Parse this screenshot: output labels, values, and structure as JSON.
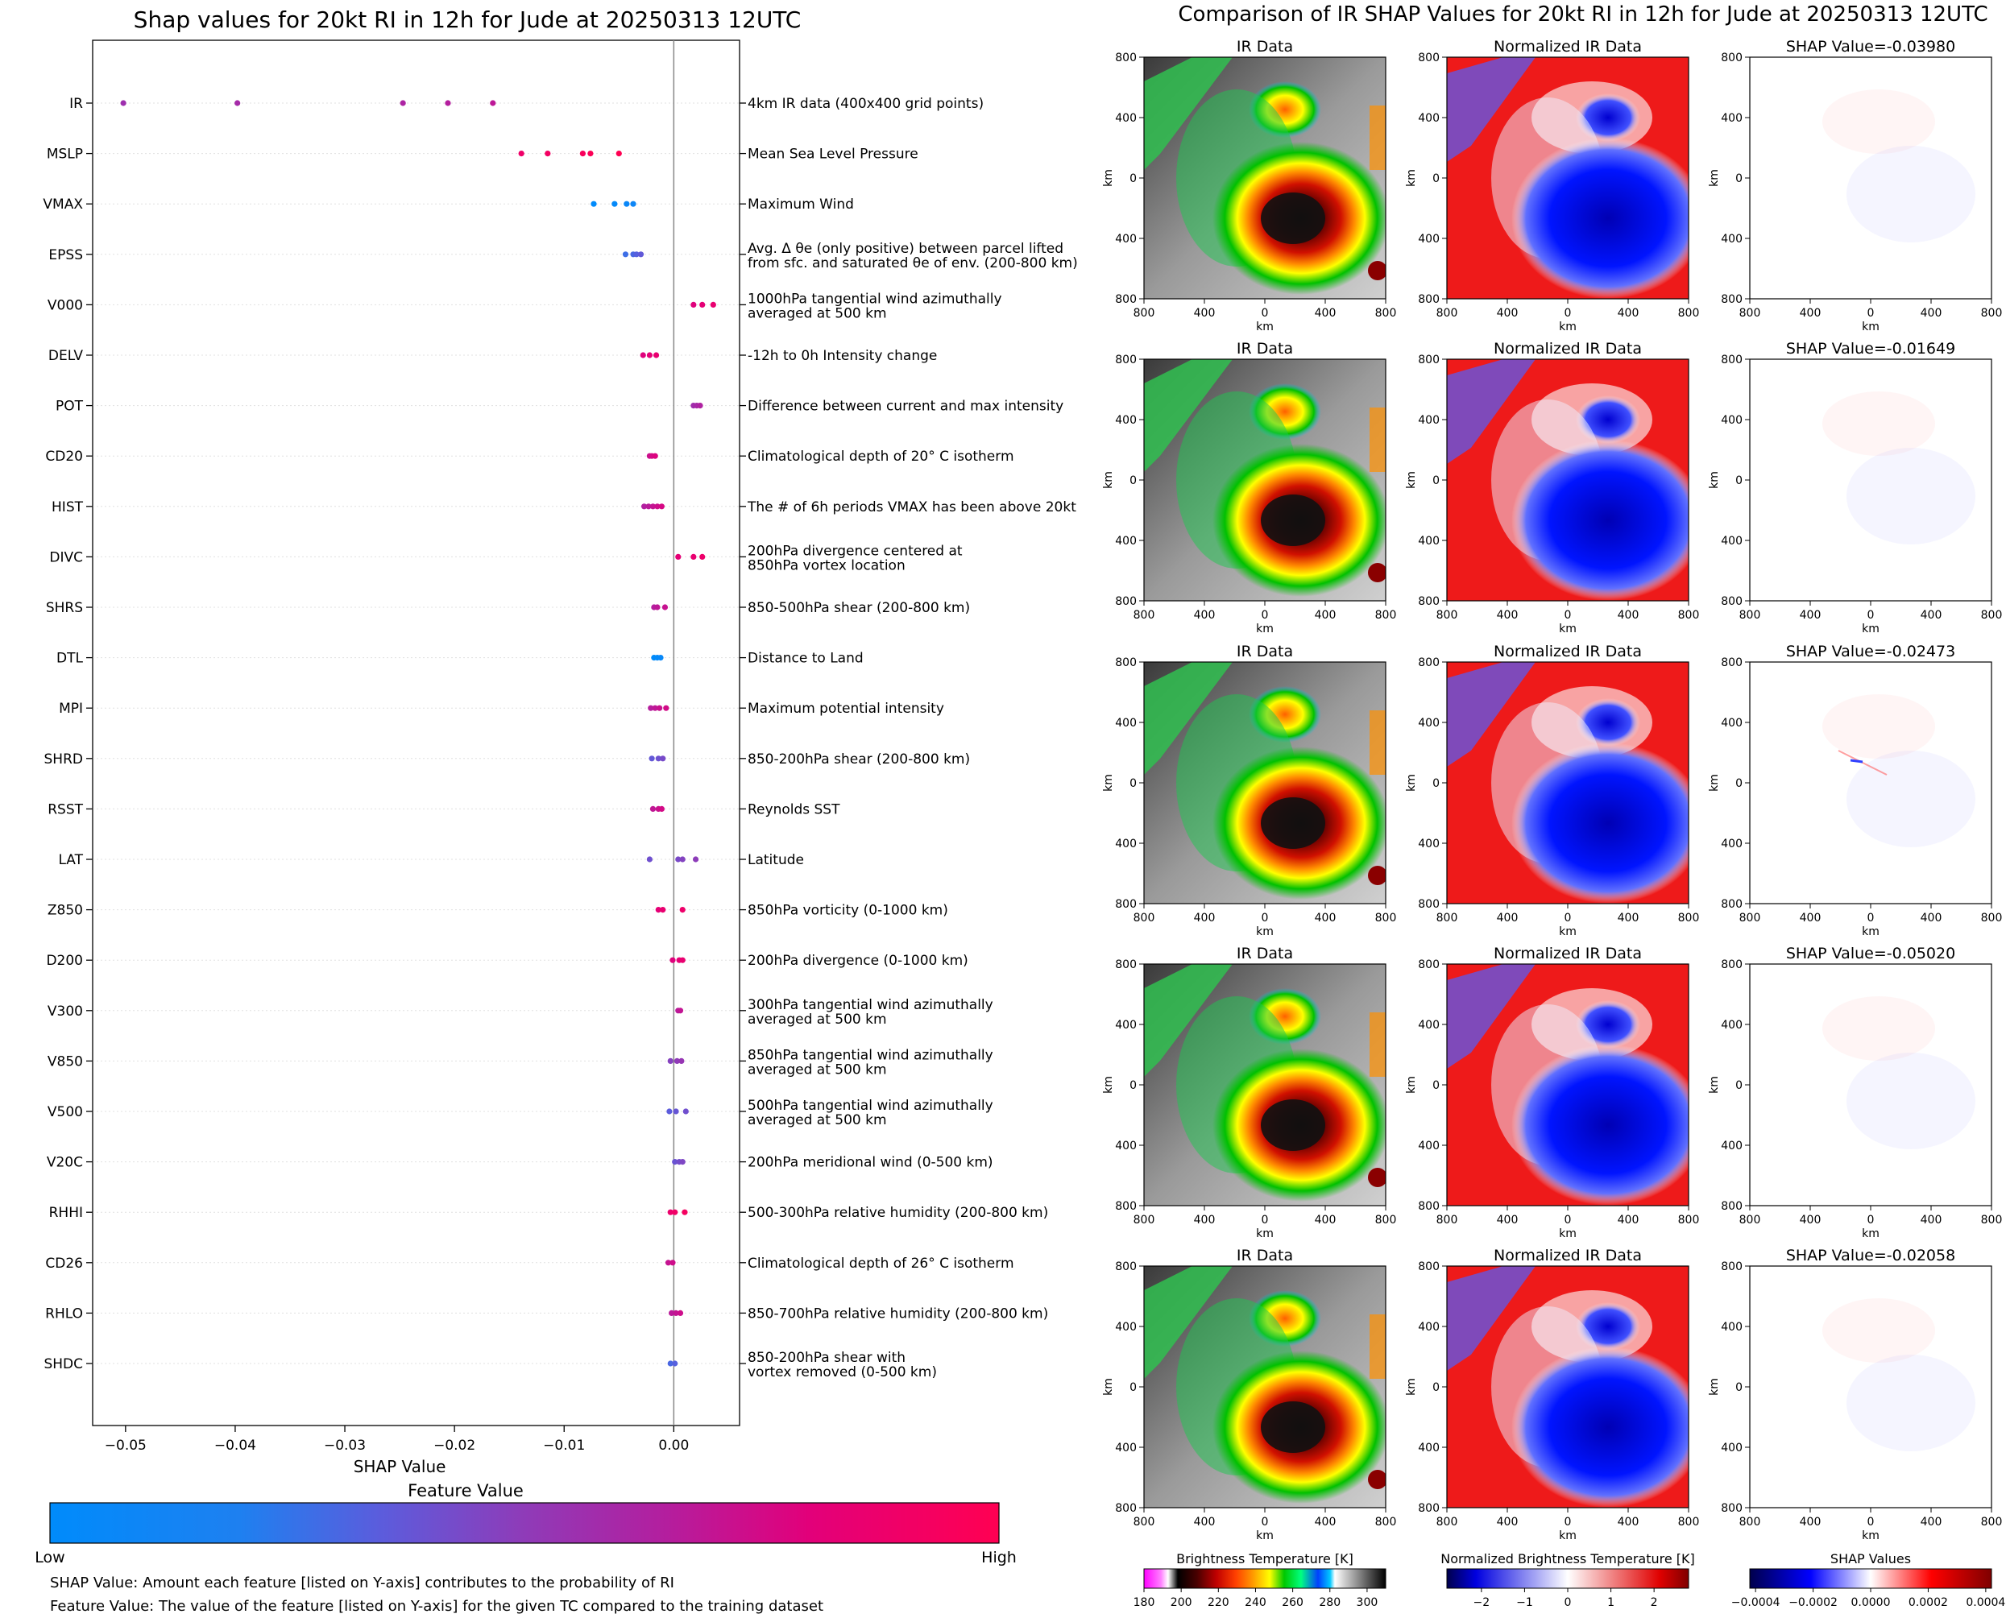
{
  "left_panel": {
    "title": "Shap values for 20kt RI in 12h for Jude at 20250313 12UTC",
    "xlabel": "SHAP Value",
    "colorbar_title": "Feature Value",
    "colorbar_low": "Low",
    "colorbar_high": "High",
    "note_shap": "SHAP Value: Amount each feature [listed on Y-axis] contributes to the probability of RI",
    "note_feature": "Feature Value: The value of the feature [listed on Y-axis] for the given TC compared to the training dataset",
    "colors": {
      "low": "#008bfb",
      "mid": "#8f3bb8",
      "high": "#ff0052"
    }
  },
  "chart_data": [
    {
      "type": "scatter",
      "title": "Shap values for 20kt RI in 12h for Jude at 20250313 12UTC",
      "xlabel": "SHAP Value",
      "ylabel": "",
      "xlim": [
        -0.053,
        0.006
      ],
      "xticks": [
        "−0.05",
        "−0.04",
        "−0.03",
        "−0.02",
        "−0.01",
        "0.00"
      ],
      "xtick_values": [
        -0.05,
        -0.04,
        -0.03,
        -0.02,
        -0.01,
        0.0
      ],
      "grid": false,
      "features": [
        {
          "name": "IR",
          "desc": [
            "4km IR data (400x400 grid points)"
          ],
          "fv": 0.62,
          "values": [
            -0.0502,
            -0.0398,
            -0.0247,
            -0.0206,
            -0.0165
          ]
        },
        {
          "name": "MSLP",
          "desc": [
            "Mean Sea Level Pressure"
          ],
          "fv": 0.95,
          "values": [
            -0.0139,
            -0.0115,
            -0.0083,
            -0.0076,
            -0.005
          ]
        },
        {
          "name": "VMAX",
          "desc": [
            "Maximum Wind"
          ],
          "fv": 0.05,
          "values": [
            -0.0073,
            -0.0054,
            -0.0043,
            -0.0037
          ]
        },
        {
          "name": "EPSS",
          "desc": [
            "Avg. Δ θe (only positive) between parcel lifted",
            "from sfc. and saturated θe of env. (200-800 km)"
          ],
          "fv": 0.32,
          "values": [
            -0.0044,
            -0.0037,
            -0.0034,
            -0.003
          ]
        },
        {
          "name": "V000",
          "desc": [
            "1000hPa tangential wind azimuthally",
            "averaged at 500 km"
          ],
          "fv": 0.82,
          "values": [
            0.0018,
            0.0026,
            0.0036
          ]
        },
        {
          "name": "DELV",
          "desc": [
            "-12h to 0h Intensity change"
          ],
          "fv": 0.82,
          "values": [
            -0.0028,
            -0.0022,
            -0.0016
          ]
        },
        {
          "name": "POT",
          "desc": [
            "Difference between current and max intensity"
          ],
          "fv": 0.6,
          "values": [
            0.0018,
            0.0021,
            0.0024
          ]
        },
        {
          "name": "CD20",
          "desc": [
            "Climatological depth of 20° C isotherm"
          ],
          "fv": 0.75,
          "values": [
            -0.0022,
            -0.002,
            -0.0017
          ]
        },
        {
          "name": "HIST",
          "desc": [
            "The # of 6h periods VMAX has been above 20kt"
          ],
          "fv": 0.7,
          "values": [
            -0.0027,
            -0.0023,
            -0.0019,
            -0.0015,
            -0.0011
          ]
        },
        {
          "name": "DIVC",
          "desc": [
            "200hPa divergence centered at",
            "850hPa vortex location"
          ],
          "fv": 0.85,
          "values": [
            0.0004,
            0.0018,
            0.0026
          ]
        },
        {
          "name": "SHRS",
          "desc": [
            "850-500hPa shear (200-800 km)"
          ],
          "fv": 0.68,
          "values": [
            -0.0018,
            -0.0015,
            -0.0008
          ]
        },
        {
          "name": "DTL",
          "desc": [
            "Distance to Land"
          ],
          "fv": 0.02,
          "values": [
            -0.0018,
            -0.0015,
            -0.0012
          ]
        },
        {
          "name": "MPI",
          "desc": [
            "Maximum potential intensity"
          ],
          "fv": 0.7,
          "values": [
            -0.0021,
            -0.0017,
            -0.0013,
            -0.0007
          ]
        },
        {
          "name": "SHRD",
          "desc": [
            "850-200hPa shear (200-800 km)"
          ],
          "fv": 0.4,
          "values": [
            -0.002,
            -0.0014,
            -0.001
          ]
        },
        {
          "name": "RSST",
          "desc": [
            "Reynolds SST"
          ],
          "fv": 0.72,
          "values": [
            -0.0019,
            -0.0014,
            -0.0011
          ]
        },
        {
          "name": "LAT",
          "desc": [
            "Latitude"
          ],
          "fv": 0.45,
          "values": [
            -0.0022,
            0.0004,
            0.0008,
            0.002
          ]
        },
        {
          "name": "Z850",
          "desc": [
            "850hPa vorticity (0-1000 km)"
          ],
          "fv": 0.85,
          "values": [
            -0.0014,
            -0.001,
            0.0008
          ]
        },
        {
          "name": "D200",
          "desc": [
            "200hPa divergence (0-1000 km)"
          ],
          "fv": 0.82,
          "values": [
            -0.0001,
            0.0005,
            0.0008
          ]
        },
        {
          "name": "V300",
          "desc": [
            "300hPa tangential wind azimuthally",
            "averaged at 500 km"
          ],
          "fv": 0.68,
          "values": [
            0.0004,
            0.0006
          ]
        },
        {
          "name": "V850",
          "desc": [
            "850hPa tangential wind azimuthally",
            "averaged at 500 km"
          ],
          "fv": 0.5,
          "values": [
            -0.0003,
            0.0003,
            0.0007
          ]
        },
        {
          "name": "V500",
          "desc": [
            "500hPa tangential wind azimuthally",
            "averaged at 500 km"
          ],
          "fv": 0.38,
          "values": [
            -0.0004,
            0.0002,
            0.0011
          ]
        },
        {
          "name": "V20C",
          "desc": [
            "200hPa meridional wind (0-500 km)"
          ],
          "fv": 0.42,
          "values": [
            0.0001,
            0.0005,
            0.0008
          ]
        },
        {
          "name": "RHHI",
          "desc": [
            "500-300hPa relative humidity (200-800 km)"
          ],
          "fv": 0.9,
          "values": [
            -0.0003,
            0.0001,
            0.001
          ]
        },
        {
          "name": "CD26",
          "desc": [
            "Climatological depth of 26° C isotherm"
          ],
          "fv": 0.72,
          "values": [
            -0.0005,
            -0.0001
          ]
        },
        {
          "name": "RHLO",
          "desc": [
            "850-700hPa relative humidity (200-800 km)"
          ],
          "fv": 0.7,
          "values": [
            -0.0002,
            0.0002,
            0.0006
          ]
        },
        {
          "name": "SHDC",
          "desc": [
            "850-200hPa shear with",
            "vortex removed (0-500 km)"
          ],
          "fv": 0.32,
          "values": [
            -0.0003,
            0.0001
          ]
        }
      ]
    },
    {
      "type": "heatmap",
      "title": "Comparison of IR SHAP Values for 20kt RI in 12h for Jude at 20250313 12UTC",
      "columns": [
        "IR Data",
        "Normalized IR Data",
        "SHAP Value"
      ],
      "xlabel": "km",
      "ylabel": "km",
      "ticks": [
        "800",
        "400",
        "0",
        "400",
        "800"
      ],
      "rows": [
        {
          "shap_title": "SHAP Value=-0.03980",
          "shap_value": -0.0398
        },
        {
          "shap_title": "SHAP Value=-0.01649",
          "shap_value": -0.01649
        },
        {
          "shap_title": "SHAP Value=-0.02473",
          "shap_value": -0.02473
        },
        {
          "shap_title": "SHAP Value=-0.05020",
          "shap_value": -0.0502
        },
        {
          "shap_title": "SHAP Value=-0.02058",
          "shap_value": -0.02058
        }
      ],
      "colorbars": [
        {
          "title": "Brightness Temperature [K]",
          "ticks": [
            "180",
            "200",
            "220",
            "240",
            "260",
            "280",
            "300"
          ],
          "tick_values": [
            180,
            200,
            220,
            240,
            260,
            280,
            300
          ],
          "range": [
            180,
            310
          ]
        },
        {
          "title": "Normalized Brightness Temperature [K]",
          "ticks": [
            "−2",
            "−1",
            "0",
            "1",
            "2"
          ],
          "tick_values": [
            -2,
            -1,
            0,
            1,
            2
          ],
          "range": [
            -2.8,
            2.8
          ]
        },
        {
          "title": "SHAP Values",
          "ticks": [
            "−0.0004",
            "−0.0002",
            "0.0000",
            "0.0002",
            "0.0004"
          ],
          "tick_values": [
            -0.0004,
            -0.0002,
            0.0,
            0.0002,
            0.0004
          ],
          "range": [
            -0.00042,
            0.00042
          ]
        }
      ]
    }
  ]
}
